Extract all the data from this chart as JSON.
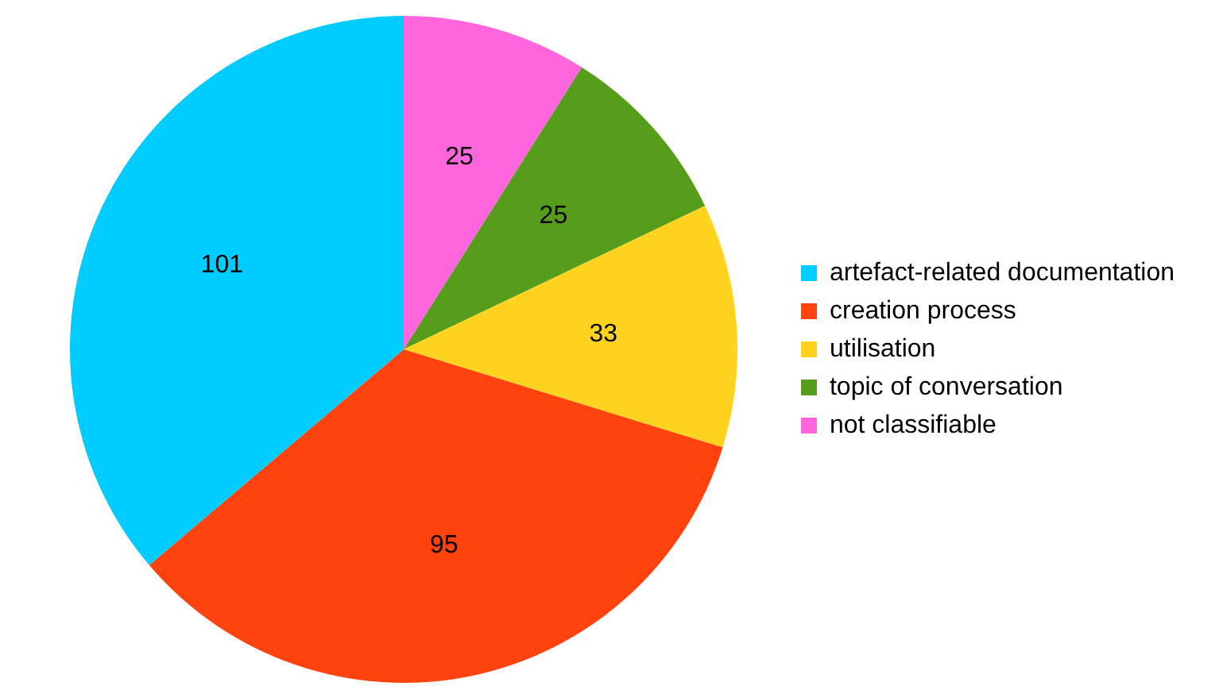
{
  "chart_data": {
    "type": "pie",
    "categories": [
      "artefact-related documentation",
      "creation process",
      "utilisation",
      "topic of conversation",
      "not classifiable"
    ],
    "values": [
      101,
      95,
      33,
      25,
      25
    ],
    "colors": [
      "#00ccff",
      "#ff420e",
      "#ffd320",
      "#579d1c",
      "#ff66dd"
    ],
    "data_labels": true,
    "legend": "right"
  }
}
